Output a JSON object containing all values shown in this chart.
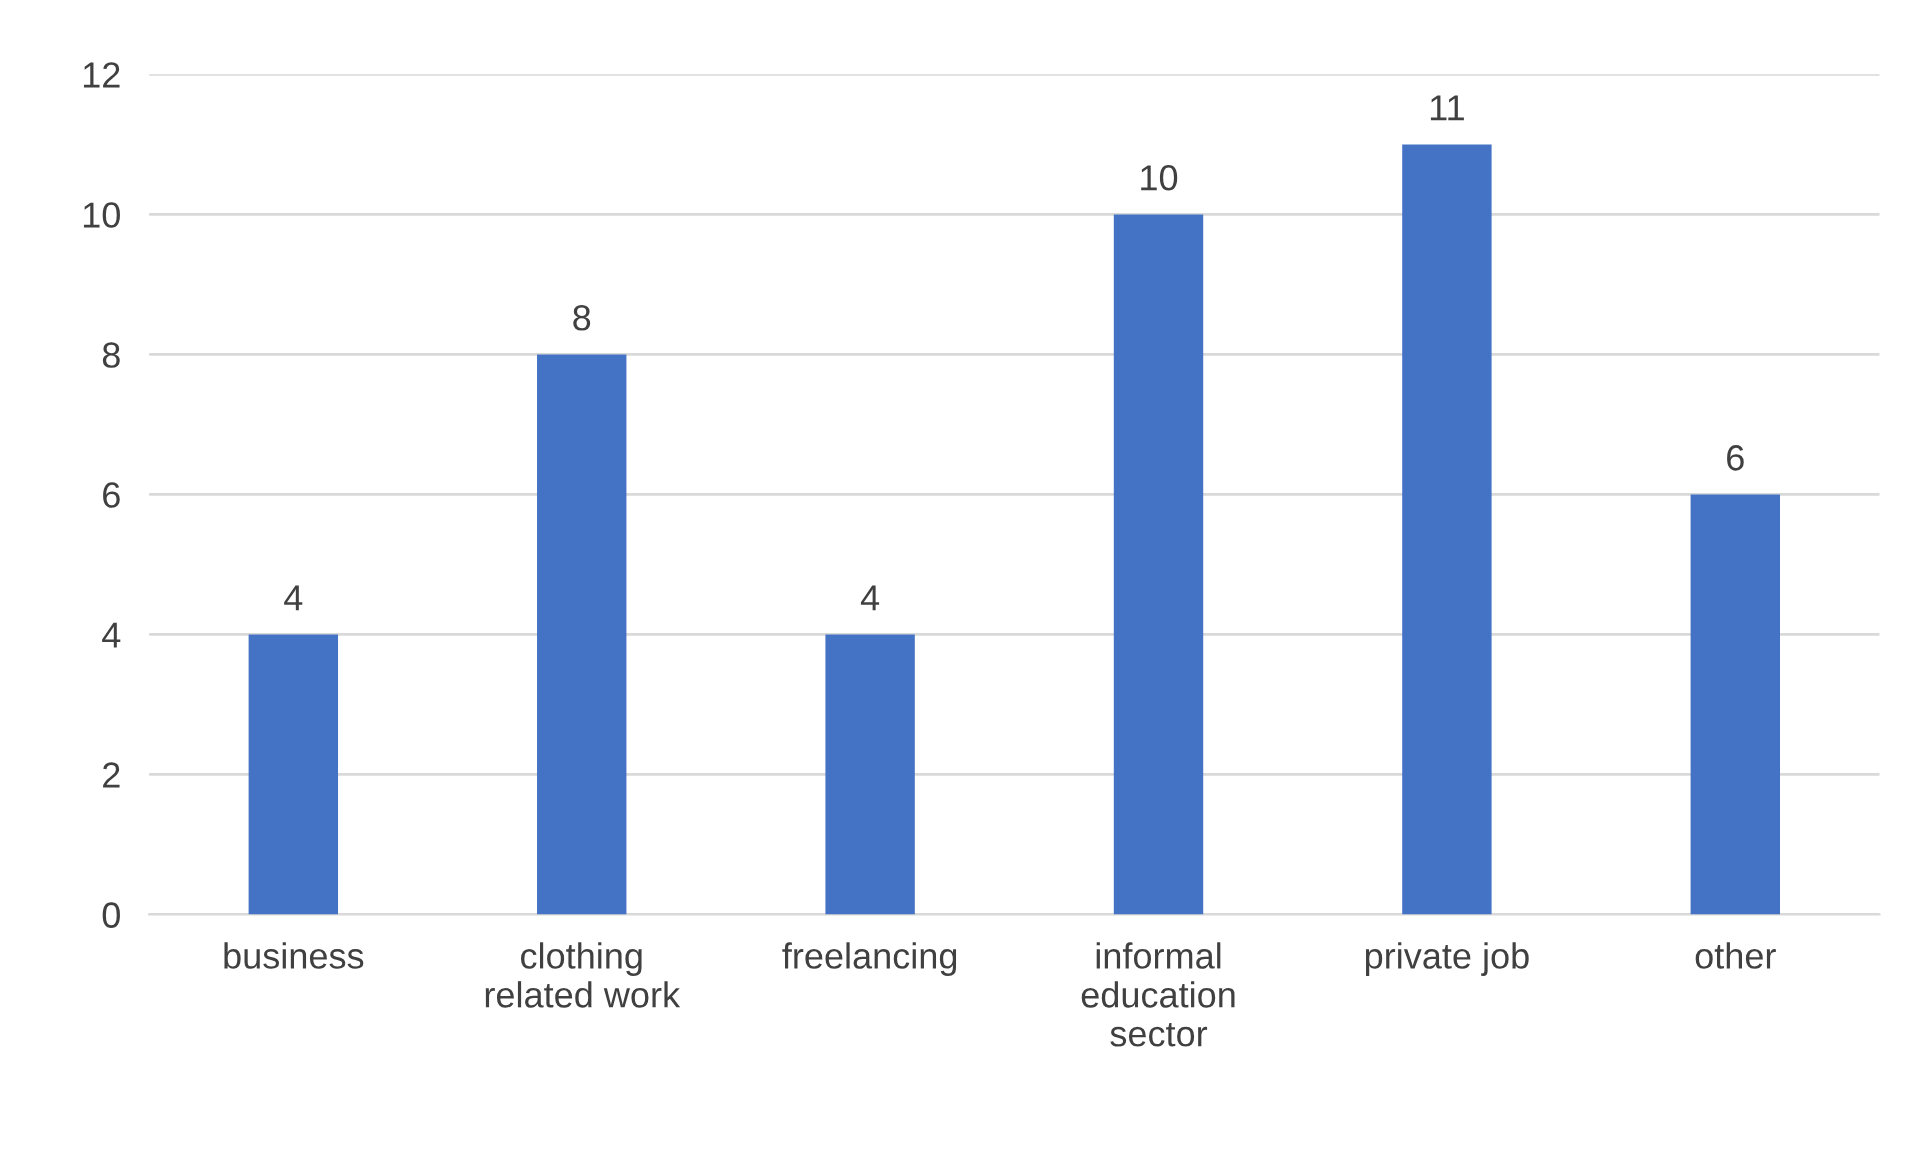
{
  "chart_data": {
    "type": "bar",
    "categories": [
      "business",
      "clothing\nrelated work",
      "freelancing",
      "informal\neducation\nsector",
      "private job",
      "other"
    ],
    "values": [
      4,
      8,
      4,
      10,
      11,
      6
    ],
    "color": "#4472c4",
    "ylim": [
      0,
      12
    ],
    "yticks": [
      0,
      2,
      4,
      6,
      8,
      10,
      12
    ],
    "grid": "y",
    "data_labels": true,
    "legend": false
  }
}
